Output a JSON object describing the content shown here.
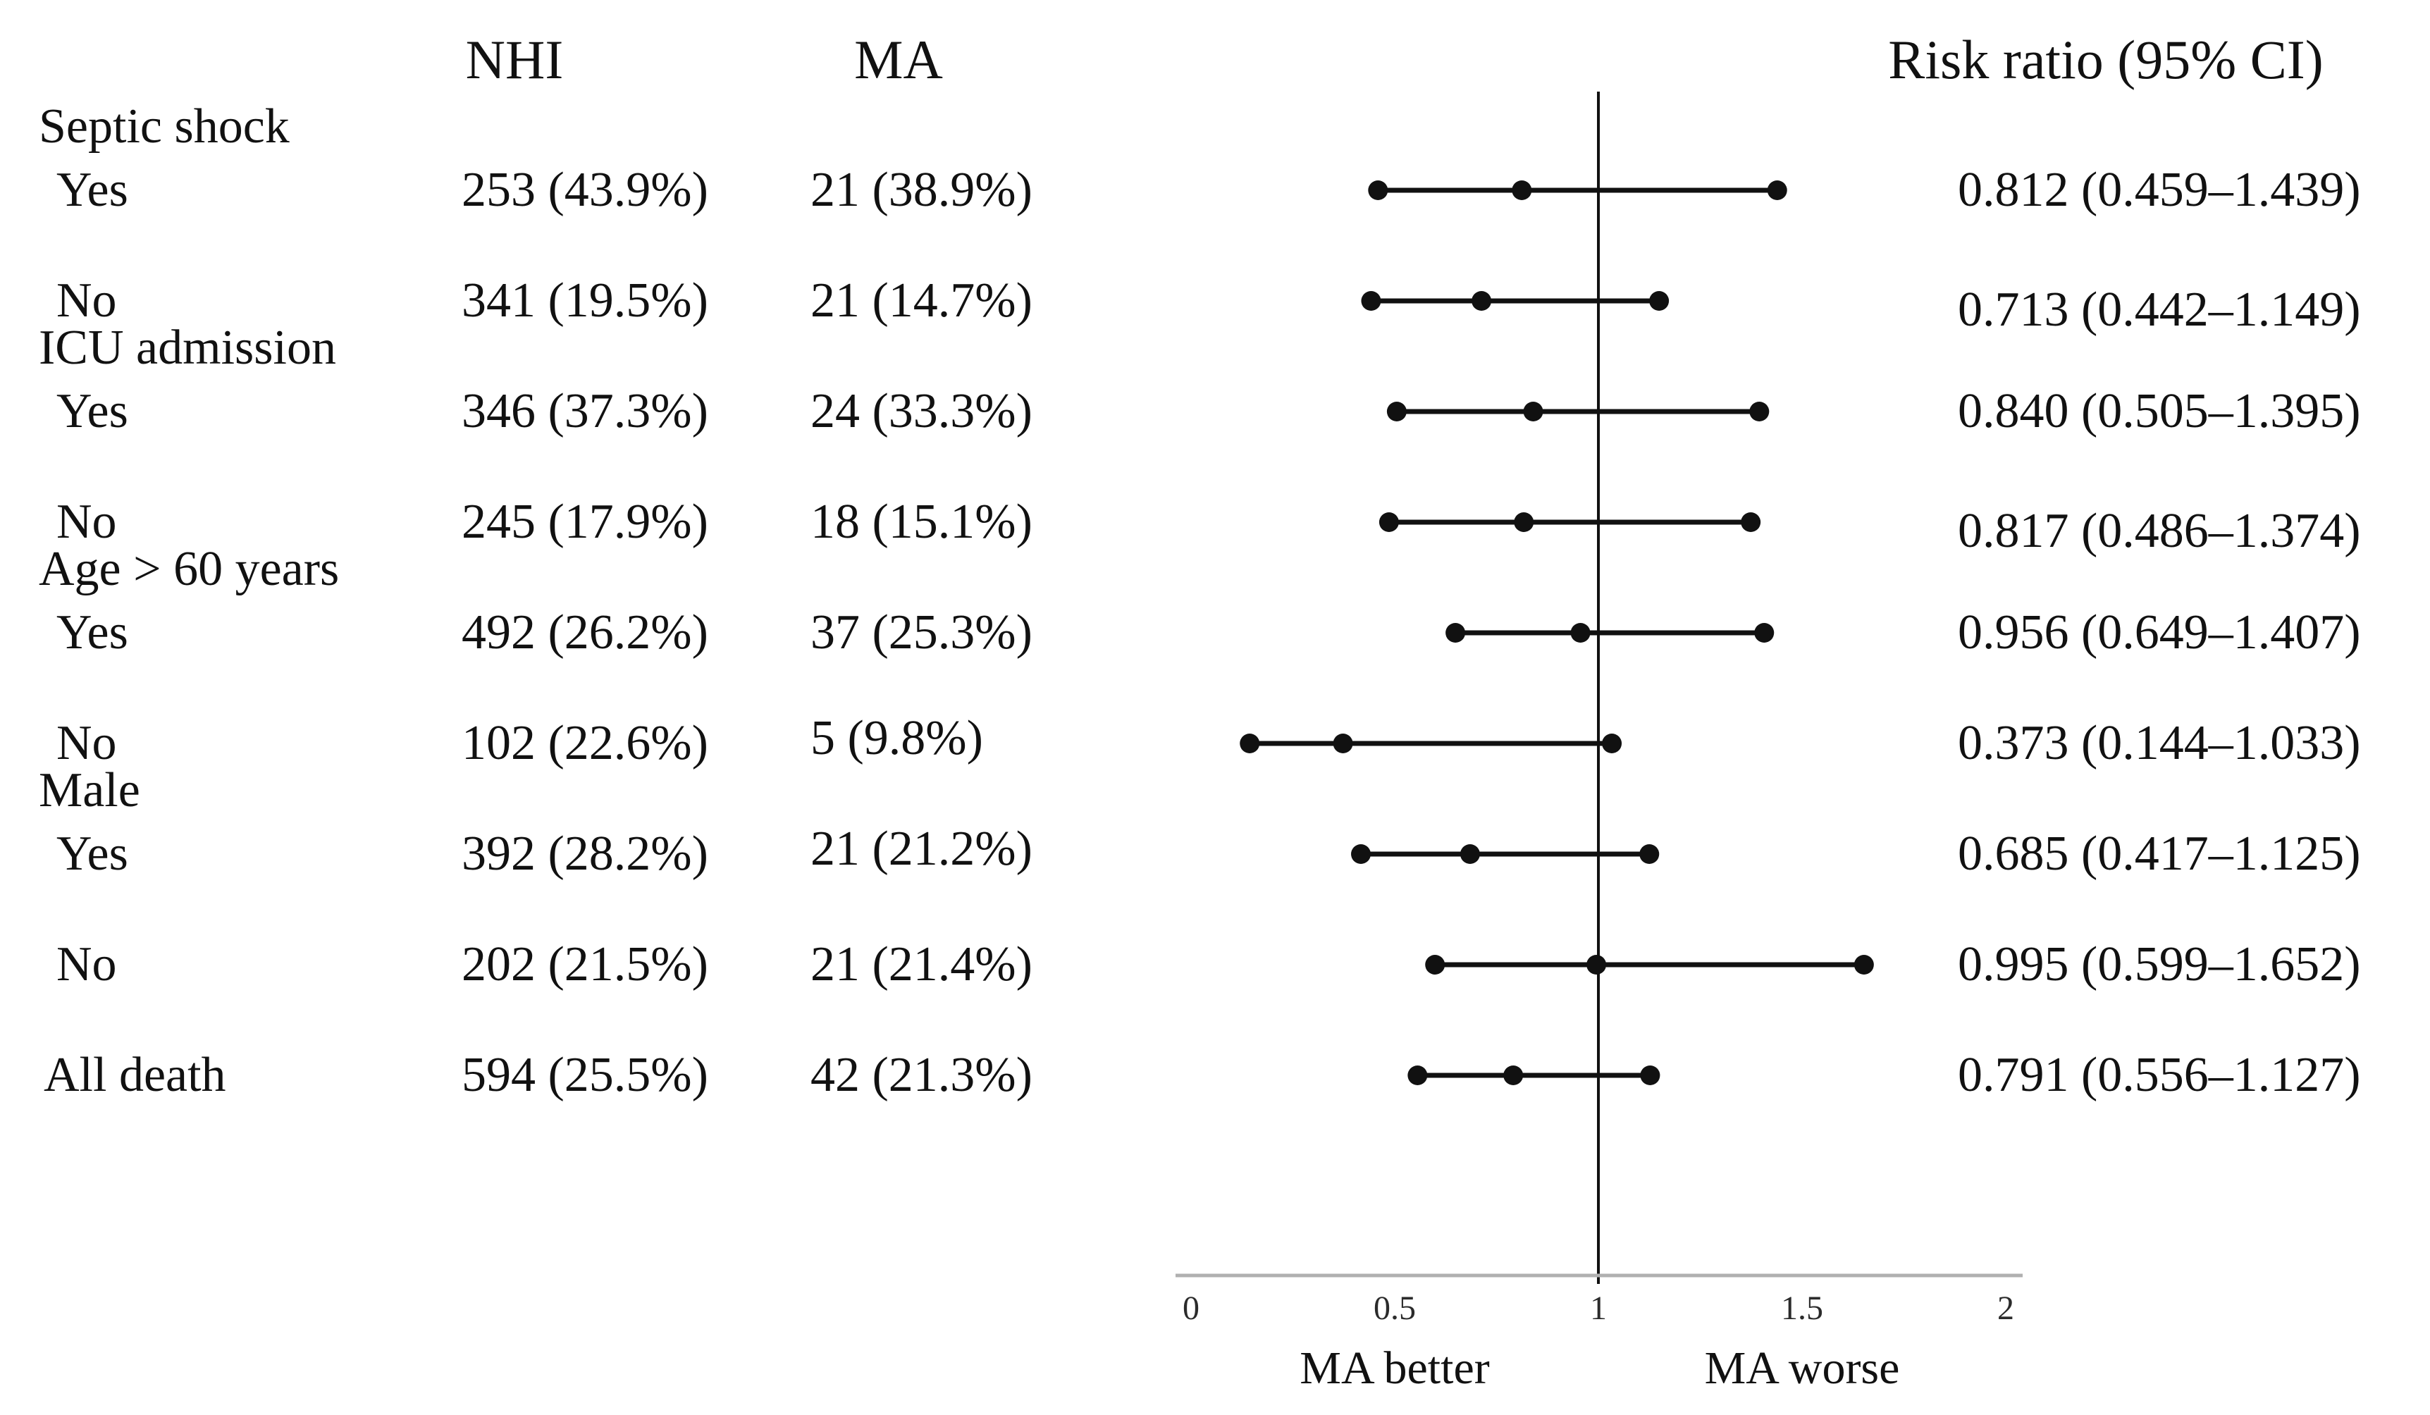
{
  "table": {
    "columns": {
      "nhi": "NHI",
      "ma": "MA",
      "risk_ratio": "Risk ratio (95% CI)"
    },
    "rows": [
      {
        "type": "group",
        "label": "Septic shock"
      },
      {
        "type": "data",
        "label": "Yes",
        "nhi": "253 (43.9%)",
        "ma": "21 (38.9%)",
        "rr": "0.812 (0.459–1.439)"
      },
      {
        "type": "data",
        "label": "No",
        "nhi": "341 (19.5%)",
        "ma": "21 (14.7%)",
        "rr": "0.713 (0.442–1.149)"
      },
      {
        "type": "group",
        "label": "ICU admission"
      },
      {
        "type": "data",
        "label": "Yes",
        "nhi": "346 (37.3%)",
        "ma": "24 (33.3%)",
        "rr": "0.840 (0.505–1.395)"
      },
      {
        "type": "data",
        "label": "No",
        "nhi": "245 (17.9%)",
        "ma": "18 (15.1%)",
        "rr": "0.817 (0.486–1.374)"
      },
      {
        "type": "group",
        "label": "Age > 60 years"
      },
      {
        "type": "data",
        "label": "Yes",
        "nhi": "492 (26.2%)",
        "ma": "37 (25.3%)",
        "rr": "0.956 (0.649–1.407)"
      },
      {
        "type": "data",
        "label": "No",
        "nhi": "102 (22.6%)",
        "ma": "5 (9.8%)",
        "rr": "0.373 (0.144–1.033)"
      },
      {
        "type": "group",
        "label": "Male"
      },
      {
        "type": "data",
        "label": "Yes",
        "nhi": "392 (28.2%)",
        "ma": "21 (21.2%)",
        "rr": "0.685 (0.417–1.125)"
      },
      {
        "type": "data",
        "label": "No",
        "nhi": "202 (21.5%)",
        "ma": "21 (21.4%)",
        "rr": "0.995 (0.599–1.652)"
      },
      {
        "type": "data",
        "label": "All death",
        "nhi": "594 (25.5%)",
        "ma": "42 (21.3%)",
        "rr": "0.791 (0.556–1.127)"
      }
    ]
  },
  "axis": {
    "tick_labels": [
      "0",
      "0.5",
      "1",
      "1.5",
      "2"
    ],
    "label_left": "MA better",
    "label_right": "MA worse"
  },
  "colors": {
    "marker": "#111111",
    "reference_line": "#111111",
    "axis_line": "#b0b0b0"
  },
  "chart_data": {
    "type": "forest",
    "title": "Risk ratio (95% CI) forest plot of MA vs NHI mortality by subgroup",
    "x_axis": {
      "range": [
        0,
        2
      ],
      "ticks": [
        0,
        0.5,
        1,
        1.5,
        2
      ],
      "tick_labels": [
        "0",
        "0.5",
        "1",
        "1.5",
        "2"
      ],
      "reference_line": 1,
      "label_left": "MA better",
      "label_right": "MA worse",
      "grid": false
    },
    "rows": [
      {
        "group": "Septic shock",
        "label": "Yes",
        "nhi_events": 253,
        "nhi_pct": 43.9,
        "ma_events": 21,
        "ma_pct": 38.9,
        "estimate": 0.812,
        "ci_low": 0.459,
        "ci_high": 1.439
      },
      {
        "group": "Septic shock",
        "label": "No",
        "nhi_events": 341,
        "nhi_pct": 19.5,
        "ma_events": 21,
        "ma_pct": 14.7,
        "estimate": 0.713,
        "ci_low": 0.442,
        "ci_high": 1.149
      },
      {
        "group": "ICU admission",
        "label": "Yes",
        "nhi_events": 346,
        "nhi_pct": 37.3,
        "ma_events": 24,
        "ma_pct": 33.3,
        "estimate": 0.84,
        "ci_low": 0.505,
        "ci_high": 1.395
      },
      {
        "group": "ICU admission",
        "label": "No",
        "nhi_events": 245,
        "nhi_pct": 17.9,
        "ma_events": 18,
        "ma_pct": 15.1,
        "estimate": 0.817,
        "ci_low": 0.486,
        "ci_high": 1.374
      },
      {
        "group": "Age > 60 years",
        "label": "Yes",
        "nhi_events": 492,
        "nhi_pct": 26.2,
        "ma_events": 37,
        "ma_pct": 25.3,
        "estimate": 0.956,
        "ci_low": 0.649,
        "ci_high": 1.407
      },
      {
        "group": "Age > 60 years",
        "label": "No",
        "nhi_events": 102,
        "nhi_pct": 22.6,
        "ma_events": 5,
        "ma_pct": 9.8,
        "estimate": 0.373,
        "ci_low": 0.144,
        "ci_high": 1.033
      },
      {
        "group": "Male",
        "label": "Yes",
        "nhi_events": 392,
        "nhi_pct": 28.2,
        "ma_events": 21,
        "ma_pct": 21.2,
        "estimate": 0.685,
        "ci_low": 0.417,
        "ci_high": 1.125
      },
      {
        "group": "Male",
        "label": "No",
        "nhi_events": 202,
        "nhi_pct": 21.5,
        "ma_events": 21,
        "ma_pct": 21.4,
        "estimate": 0.995,
        "ci_low": 0.599,
        "ci_high": 1.652
      },
      {
        "group": "",
        "label": "All death",
        "nhi_events": 594,
        "nhi_pct": 25.5,
        "ma_events": 42,
        "ma_pct": 21.3,
        "estimate": 0.791,
        "ci_low": 0.556,
        "ci_high": 1.127
      }
    ]
  }
}
